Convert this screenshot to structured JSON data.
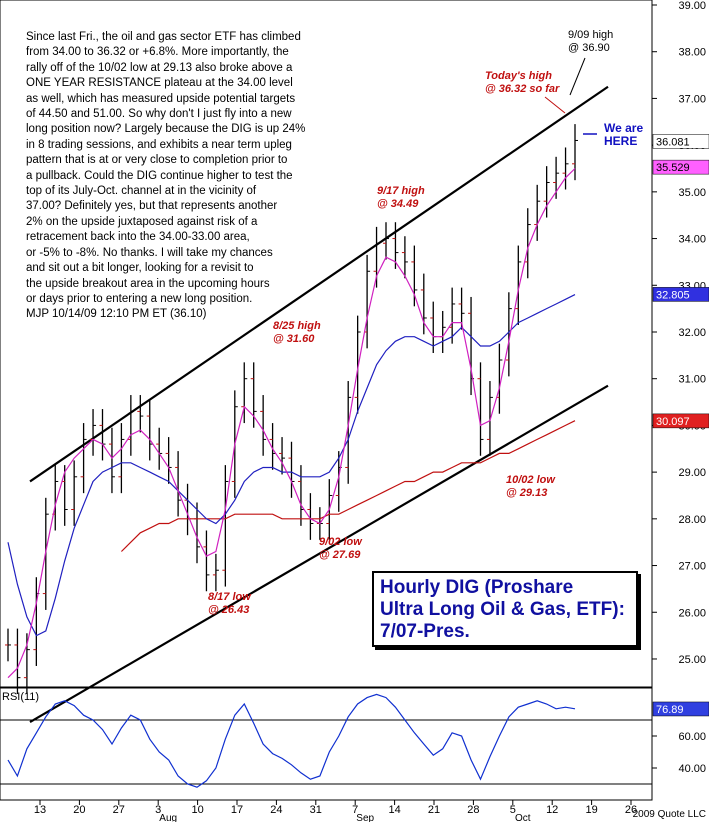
{
  "commentary": "Since last Fri., the oil and gas sector ETF has climbed\nfrom 34.00 to 36.32 or +6.8%. More importantly, the\nrally off of the 10/02 low at 29.13 also broke above a\nONE YEAR RESISTANCE plateau at the 34.00 level\nas well, which has measured upside potential targets\nof 44.50 and 51.00. So why don't I just fly into a new\nlong position now? Largely because the DIG is up 24%\nin 8 trading sessions, and exhibits a near term upleg\npattern that is at or very close to completion prior to\na pullback. Could the DIG continue higher to test the\ntop of its July-Oct. channel at in the vicinity of\n37.00? Definitely yes, but that represents another\n2% on the upside juxtaposed against risk of a\nretracement back into the 34.00-33.00 area,\nor -5% to -8%. No thanks. I will take my chances\nand sit out a bit longer, looking for a revisit to\nthe upside breakout area in the upcoming hours\nor days prior to entering a new long position.\nMJP 10/14/09 12:10 PM ET (36.10)",
  "title_box": "Hourly DIG (Proshare\nUltra Long Oil & Gas, ETF):\n7/07-Pres.",
  "copyright": "2009 Quote LLC",
  "colors": {
    "ma_fast": "#d020c0",
    "ma_mid": "#2020c0",
    "ma_slow": "#c01010",
    "annotation_red": "#c01010",
    "annotation_blue": "#1010c0",
    "rsi_line": "#1030d0",
    "price_bar": "#000000",
    "price_tick": "#c01010"
  },
  "chart_data": {
    "type": "ohlc",
    "price_axis": {
      "range": [
        24.4,
        39.0
      ],
      "ticks": [
        "25.00",
        "26.00",
        "27.00",
        "28.00",
        "29.00",
        "30.00",
        "31.00",
        "32.00",
        "33.00",
        "34.00",
        "35.00",
        "36.00",
        "37.00",
        "38.00",
        "39.00"
      ]
    },
    "x_axis": {
      "day_ticks": [
        "13",
        "20",
        "27",
        "3",
        "10",
        "17",
        "24",
        "31",
        "7",
        "14",
        "21",
        "28",
        "5",
        "12",
        "19",
        "26"
      ],
      "month_labels": [
        "Aug",
        "Sep",
        "Oct"
      ]
    },
    "last_value_labels": [
      {
        "value": "36.081",
        "bg": "#ffffff",
        "fg": "#000000"
      },
      {
        "value": "35.529",
        "bg": "#ff60ff",
        "fg": "#000000"
      },
      {
        "value": "32.805",
        "bg": "#3030e0",
        "fg": "#ffffff"
      },
      {
        "value": "30.097",
        "bg": "#e02020",
        "fg": "#ffffff"
      }
    ],
    "price": [
      25.3,
      24.6,
      25.2,
      26.4,
      28.1,
      28.8,
      28.2,
      28.9,
      29.7,
      30.0,
      29.6,
      28.9,
      29.7,
      30.3,
      30.2,
      29.6,
      29.4,
      29.1,
      28.4,
      28.0,
      27.4,
      26.8,
      26.9,
      28.8,
      30.4,
      31.0,
      30.3,
      29.7,
      29.4,
      29.3,
      28.8,
      28.2,
      27.9,
      27.9,
      28.5,
      29.1,
      30.6,
      32.0,
      33.3,
      33.9,
      34.0,
      33.7,
      33.5,
      32.9,
      32.3,
      31.9,
      32.1,
      32.6,
      32.4,
      31.0,
      29.7,
      30.6,
      31.4,
      32.5,
      33.5,
      34.3,
      34.8,
      35.2,
      35.4,
      35.6,
      36.1
    ],
    "ma_fast": [
      24.6,
      24.8,
      25.3,
      26.2,
      27.3,
      28.3,
      29.0,
      29.3,
      29.5,
      29.7,
      29.6,
      29.3,
      29.5,
      29.8,
      29.9,
      29.7,
      29.4,
      29.1,
      28.6,
      28.1,
      27.6,
      27.2,
      27.3,
      28.2,
      29.6,
      30.4,
      30.2,
      29.9,
      29.5,
      29.2,
      28.8,
      28.3,
      28.0,
      27.9,
      28.2,
      28.9,
      30.0,
      31.2,
      32.3,
      33.2,
      33.6,
      33.5,
      33.2,
      32.8,
      32.2,
      31.9,
      31.9,
      32.2,
      32.2,
      31.2,
      30.0,
      30.1,
      30.8,
      31.8,
      32.9,
      33.8,
      34.3,
      34.7,
      35.0,
      35.3,
      35.5
    ],
    "ma_mid": [
      27.5,
      26.6,
      25.9,
      25.5,
      25.6,
      26.3,
      27.1,
      27.8,
      28.3,
      28.8,
      29.0,
      29.1,
      29.2,
      29.2,
      29.1,
      29.0,
      28.9,
      28.8,
      28.6,
      28.4,
      28.2,
      28.0,
      27.9,
      28.1,
      28.4,
      28.8,
      29.0,
      29.1,
      29.1,
      29.0,
      29.0,
      28.9,
      28.9,
      28.9,
      29.0,
      29.3,
      29.7,
      30.3,
      30.8,
      31.3,
      31.6,
      31.8,
      31.9,
      31.9,
      31.8,
      31.7,
      31.8,
      31.9,
      32.1,
      31.9,
      31.7,
      31.7,
      31.8,
      32.0,
      32.2,
      32.3,
      32.4,
      32.5,
      32.6,
      32.7,
      32.8
    ],
    "ma_slow": [
      null,
      null,
      null,
      null,
      null,
      null,
      null,
      null,
      null,
      null,
      null,
      null,
      27.3,
      27.5,
      27.7,
      27.8,
      27.9,
      27.9,
      28.0,
      28.0,
      28.0,
      28.0,
      28.0,
      28.0,
      28.1,
      28.1,
      28.1,
      28.1,
      28.1,
      28.0,
      28.0,
      28.0,
      28.0,
      28.0,
      28.1,
      28.1,
      28.2,
      28.3,
      28.4,
      28.5,
      28.6,
      28.7,
      28.8,
      28.8,
      28.9,
      29.0,
      29.0,
      29.1,
      29.2,
      29.2,
      29.2,
      29.3,
      29.4,
      29.4,
      29.5,
      29.6,
      29.7,
      29.8,
      29.9,
      30.0,
      30.1
    ],
    "channel": {
      "upper": [
        [
          0.0,
          28.8
        ],
        [
          1.0,
          37.25
        ]
      ],
      "lower": [
        [
          0.0,
          23.65
        ],
        [
          1.0,
          30.85
        ]
      ]
    },
    "annotations": [
      {
        "text": "9/09 high\n@ 36.90",
        "color": "black"
      },
      {
        "text": "Today's high\n@ 36.32 so far",
        "color": "red"
      },
      {
        "text": "We are\nHERE",
        "color": "blue"
      },
      {
        "text": "9/17 high\n@ 34.49",
        "color": "red"
      },
      {
        "text": "8/25 high\n@ 31.60",
        "color": "red"
      },
      {
        "text": "10/02 low\n@ 29.13",
        "color": "red"
      },
      {
        "text": "9/02 low\n@ 27.69",
        "color": "red"
      },
      {
        "text": "8/17 low\n@ 26.43",
        "color": "red"
      }
    ],
    "rsi": {
      "label": "RSI(11)",
      "last": "76.89",
      "ticks": [
        "40.00",
        "60.00"
      ],
      "levels": [
        30,
        70
      ],
      "range": [
        20,
        90
      ],
      "values": [
        45,
        35,
        52,
        62,
        72,
        80,
        82,
        79,
        73,
        70,
        64,
        55,
        65,
        73,
        70,
        58,
        50,
        45,
        35,
        30,
        28,
        32,
        40,
        58,
        73,
        80,
        68,
        55,
        49,
        46,
        42,
        37,
        33,
        35,
        50,
        60,
        72,
        80,
        84,
        86,
        84,
        78,
        70,
        62,
        55,
        48,
        52,
        62,
        60,
        45,
        33,
        47,
        60,
        72,
        78,
        80,
        82,
        80,
        77,
        78,
        77
      ]
    }
  }
}
